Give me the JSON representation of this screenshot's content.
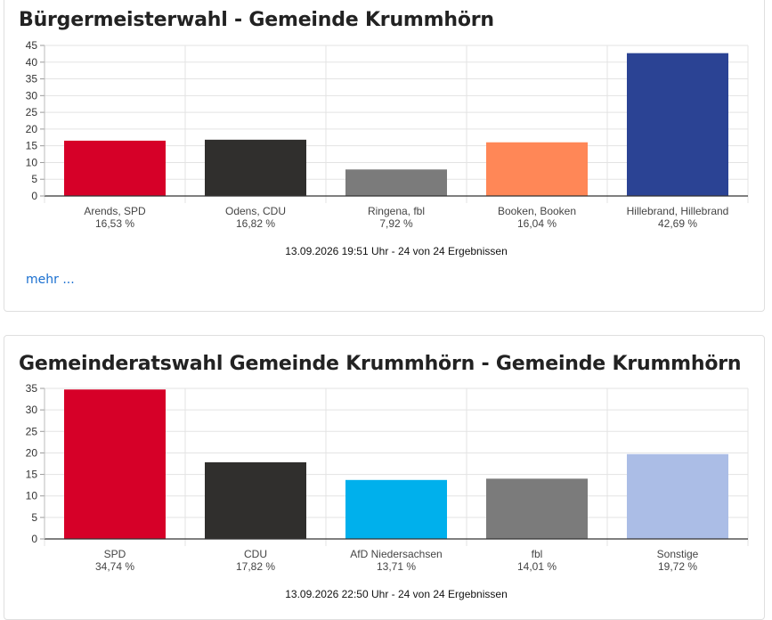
{
  "cards": [
    {
      "title": "Bürgermeisterwahl - Gemeinde Krummhörn",
      "more_link": "mehr ...",
      "chart_data": {
        "type": "bar",
        "ylim": [
          0,
          45
        ],
        "yticks": [
          0,
          5,
          10,
          15,
          20,
          25,
          30,
          35,
          40,
          45
        ],
        "grid": true,
        "categories": [
          "Arends, SPD",
          "Odens, CDU",
          "Ringena, fbl",
          "Booken, Booken",
          "Hillebrand, Hillebrand"
        ],
        "value_labels": [
          "16,53 %",
          "16,82 %",
          "7,92 %",
          "16,04 %",
          "42,69 %"
        ],
        "values": [
          16.53,
          16.82,
          7.92,
          16.04,
          42.69
        ],
        "colors": [
          "#d60028",
          "#302f2d",
          "#7b7b7b",
          "#ff8757",
          "#2b4394"
        ],
        "footer": "13.09.2026 19:51 Uhr - 24 von 24 Ergebnissen"
      }
    },
    {
      "title": "Gemeinderatswahl Gemeinde Krummhörn - Gemeinde Krummhörn",
      "chart_data": {
        "type": "bar",
        "ylim": [
          0,
          35
        ],
        "yticks": [
          0,
          5,
          10,
          15,
          20,
          25,
          30,
          35
        ],
        "grid": true,
        "categories": [
          "SPD",
          "CDU",
          "AfD Niedersachsen",
          "fbl",
          "Sonstige"
        ],
        "value_labels": [
          "34,74 %",
          "17,82 %",
          "13,71 %",
          "14,01 %",
          "19,72 %"
        ],
        "values": [
          34.74,
          17.82,
          13.71,
          14.01,
          19.72
        ],
        "colors": [
          "#d60028",
          "#302f2d",
          "#00b0ec",
          "#7b7b7b",
          "#abbde6"
        ],
        "footer": "13.09.2026 22:50 Uhr - 24 von 24 Ergebnissen"
      }
    }
  ]
}
